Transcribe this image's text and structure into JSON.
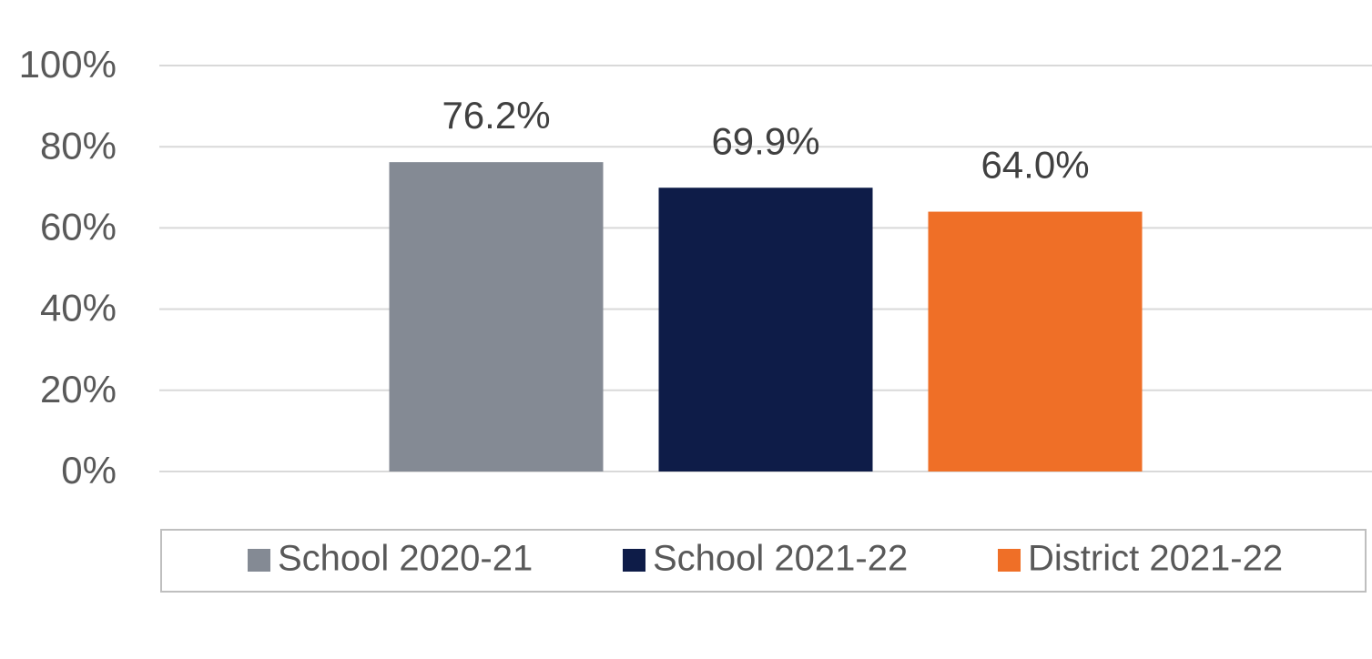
{
  "chart_data": {
    "type": "bar",
    "categories": [
      null
    ],
    "series": [
      {
        "name": "School 2020-21",
        "color": "#848a94",
        "values": [
          76.2
        ],
        "value_labels": [
          "76.2%"
        ]
      },
      {
        "name": "School 2021-22",
        "color": "#0e1c48",
        "values": [
          69.9
        ],
        "value_labels": [
          "69.9%"
        ]
      },
      {
        "name": "District 2021-22",
        "color": "#ef6f27",
        "values": [
          64.0
        ],
        "value_labels": [
          "64.0%"
        ]
      }
    ],
    "ylim": [
      0,
      100
    ],
    "yticks": [
      {
        "value": 0,
        "label": "0%"
      },
      {
        "value": 20,
        "label": "20%"
      },
      {
        "value": 40,
        "label": "40%"
      },
      {
        "value": 60,
        "label": "60%"
      },
      {
        "value": 80,
        "label": "80%"
      },
      {
        "value": 100,
        "label": "100%"
      }
    ],
    "grid": true,
    "legend": "bottom"
  }
}
